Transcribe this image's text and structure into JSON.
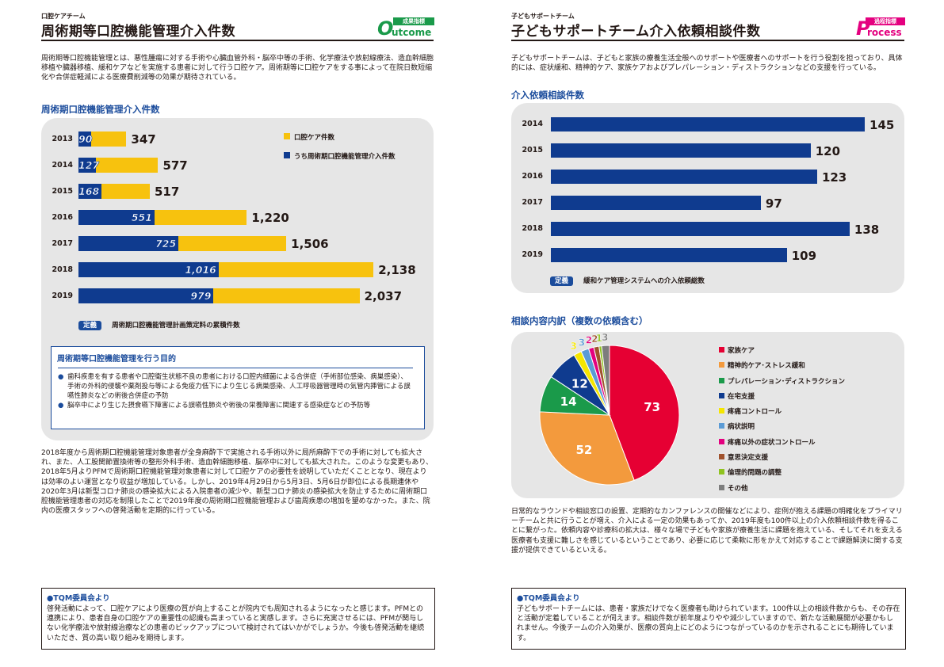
{
  "left": {
    "small_label": "口腔ケアチーム",
    "title": "周術期等口腔機能管理介入件数",
    "badge": {
      "small": "成果指標",
      "word": "utcome",
      "letter": "O"
    },
    "intro": "周術期等口腔機能管理とは、悪性腫瘍に対する手術や心臓血管外科・脳卒中等の手術、化学療法や放射線療法、造血幹細胞移植や臓器移植、緩和ケアなどを実施する患者に対して行う口腔ケア。周術期等に口腔ケアをする事によって在院日数短縮化や合併症軽減による医療費削減等の効果が期待されている。",
    "chart_title": "周術期口腔機能管理介入件数",
    "legend_yellow": "口腔ケア件数",
    "legend_blue": "うち周術期口腔機能管理介入件数",
    "definition_badge": "定義",
    "definition_text": "周術期口腔機能管理計画策定料の累積件数",
    "purpose_title": "周術期等口腔機能管理を行う目的",
    "purpose_items": [
      "歯科疾患を有する患者や口腔衛生状態不良の患者における口腔内細菌による合併症（手術部位感染、病巣感染）、手術の外科的侵襲や薬剤投与等による免疫力低下により生じる病巣感染、人工呼吸器管理時の気管内挿管による誤嚥性肺炎などの術後合併症の予防",
      "脳卒中により生じた摂食嚥下障害による誤嚥性肺炎や術後の栄養障害に関連する感染症などの予防等"
    ],
    "body": "2018年度から周術期口腔機能管理対象患者が全身麻酔下で実施される手術以外に局所麻酔下での手術に対しても拡大され、また、人工股関節置換術等の整形外科手術、造血幹細胞移植、脳卒中に対しても拡大された。このような変更もあり、2018年5月よりPFMで周術期口腔機能管理対象患者に対して口腔ケアの必要性を説明していただくこととなり、現在よりは効率のよい運営となり収益が増加している。しかし、2019年4月29日から5月3日、5月6日が即位による長期連休や2020年3月は新型コロナ肺炎の感染拡大による入院患者の減少や、新型コロナ肺炎の感染拡大を防止するために周術期口腔機能管理患者の対応を制限したことで2019年度の周術期口腔機能管理および歯周疾患の増加を望めなかった。また、院内の医療スタッフへの啓発活動を定期的に行っている。",
    "tqm_title": "●TQM委員会より",
    "tqm_text": "啓発活動によって、口腔ケアにより医療の質が向上することが院内でも周知されるようになったと感じます。PFMとの連携により、患者自身の口腔ケアの重要性の認識も高まっていると実感します。さらに充実させるには、PFMが関与しない化学療法や放射線治療などの患者のピックアップについて検討されてはいかがでしょうか。今後も啓発活動を継続いただき、質の高い取り組みを期待します。"
  },
  "right": {
    "small_label": "子どもサポートチーム",
    "title": "子どもサポートチーム介入依頼相談件数",
    "badge": {
      "small": "過程指標",
      "word": "rocess",
      "letter": "P"
    },
    "intro": "子どもサポートチームは、子どもと家族の療養生活全般へのサポートや医療者へのサポートを行う役割を担っており、具体的には、症状緩和、精神的ケア、家族ケアおよびプレパレーション・ディストラクションなどの支援を行っている。",
    "chart_title": "介入依頼相談件数",
    "definition_badge": "定義",
    "definition_text": "緩和ケア管理システムへの介入依頼総数",
    "pie_title": "相談内容内訳（複数の依頼含む）",
    "body": "日常的なラウンドや相談窓口の設置、定期的なカンファレンスの開催などにより、症例が抱える課題の明確化をプライマリーチームと共に行うことが増え、介入による一定の効果もあってか、2019年度も100件以上の介入依頼相談件数を得ることに繋がった。依頼内容や診療科の拡大は、様々な場で子どもや家族が療養生活に課題を抱えている、そしてそれを支える医療者も支援に難しさを感じているということであり、必要に応じて柔軟に形をかえて対応することで課題解決に関する支援が提供できているといえる。",
    "tqm_title": "●TQM委員会より",
    "tqm_text": "子どもサポートチームには、患者・家族だけでなく医療者も助けられています。100件以上の相談件数からも、その存在と活動が定着していることが伺えます。相談件数が前年度よりやや減少していますので、新たな活動展開が必要かもしれません。今後チームの介入効果が、医療の質向上にどのようにつながっているのかを示されることにも期待しています。"
  },
  "colors": {
    "navy": "#0f3b8f",
    "yellow": "#f7c20e",
    "accent_green": "#1a9a4a",
    "accent_pink": "#e4007f"
  },
  "chart_data": [
    {
      "type": "bar",
      "orientation": "horizontal",
      "title": "周術期口腔機能管理介入件数",
      "categories": [
        "2013",
        "2014",
        "2015",
        "2016",
        "2017",
        "2018",
        "2019"
      ],
      "series": [
        {
          "name": "口腔ケア件数",
          "values": [
            347,
            577,
            517,
            1220,
            1506,
            2138,
            2037
          ],
          "labels": [
            "347",
            "577",
            "517",
            "1,220",
            "1,506",
            "2,138",
            "2,037"
          ]
        },
        {
          "name": "うち周術期口腔機能管理介入件数",
          "values": [
            90,
            127,
            168,
            551,
            725,
            1016,
            979
          ],
          "labels": [
            "90",
            "127",
            "168",
            "551",
            "725",
            "1,016",
            "979"
          ]
        }
      ],
      "xlim": [
        0,
        2200
      ]
    },
    {
      "type": "bar",
      "orientation": "horizontal",
      "title": "介入依頼相談件数",
      "categories": [
        "2014",
        "2015",
        "2016",
        "2017",
        "2018",
        "2019"
      ],
      "values": [
        145,
        120,
        123,
        97,
        138,
        109
      ],
      "xlim": [
        0,
        160
      ]
    },
    {
      "type": "pie",
      "title": "相談内容内訳（複数の依頼含む）",
      "categories": [
        "家族ケア",
        "精神的ケア･ストレス緩和",
        "プレパレーション･ディストラクション",
        "在宅支援",
        "疼痛コントロール",
        "病状説明",
        "疼痛以外の症状コントロール",
        "意思決定支援",
        "倫理的問題の調整",
        "その他"
      ],
      "values": [
        73,
        52,
        14,
        12,
        3,
        3,
        2,
        2,
        1,
        3
      ],
      "colors": [
        "#e60033",
        "#f39a3d",
        "#1a9a4a",
        "#0f3b8f",
        "#f5e600",
        "#5b9bd5",
        "#e4007f",
        "#a0522d",
        "#8fc31f",
        "#7d7d7d"
      ]
    }
  ]
}
